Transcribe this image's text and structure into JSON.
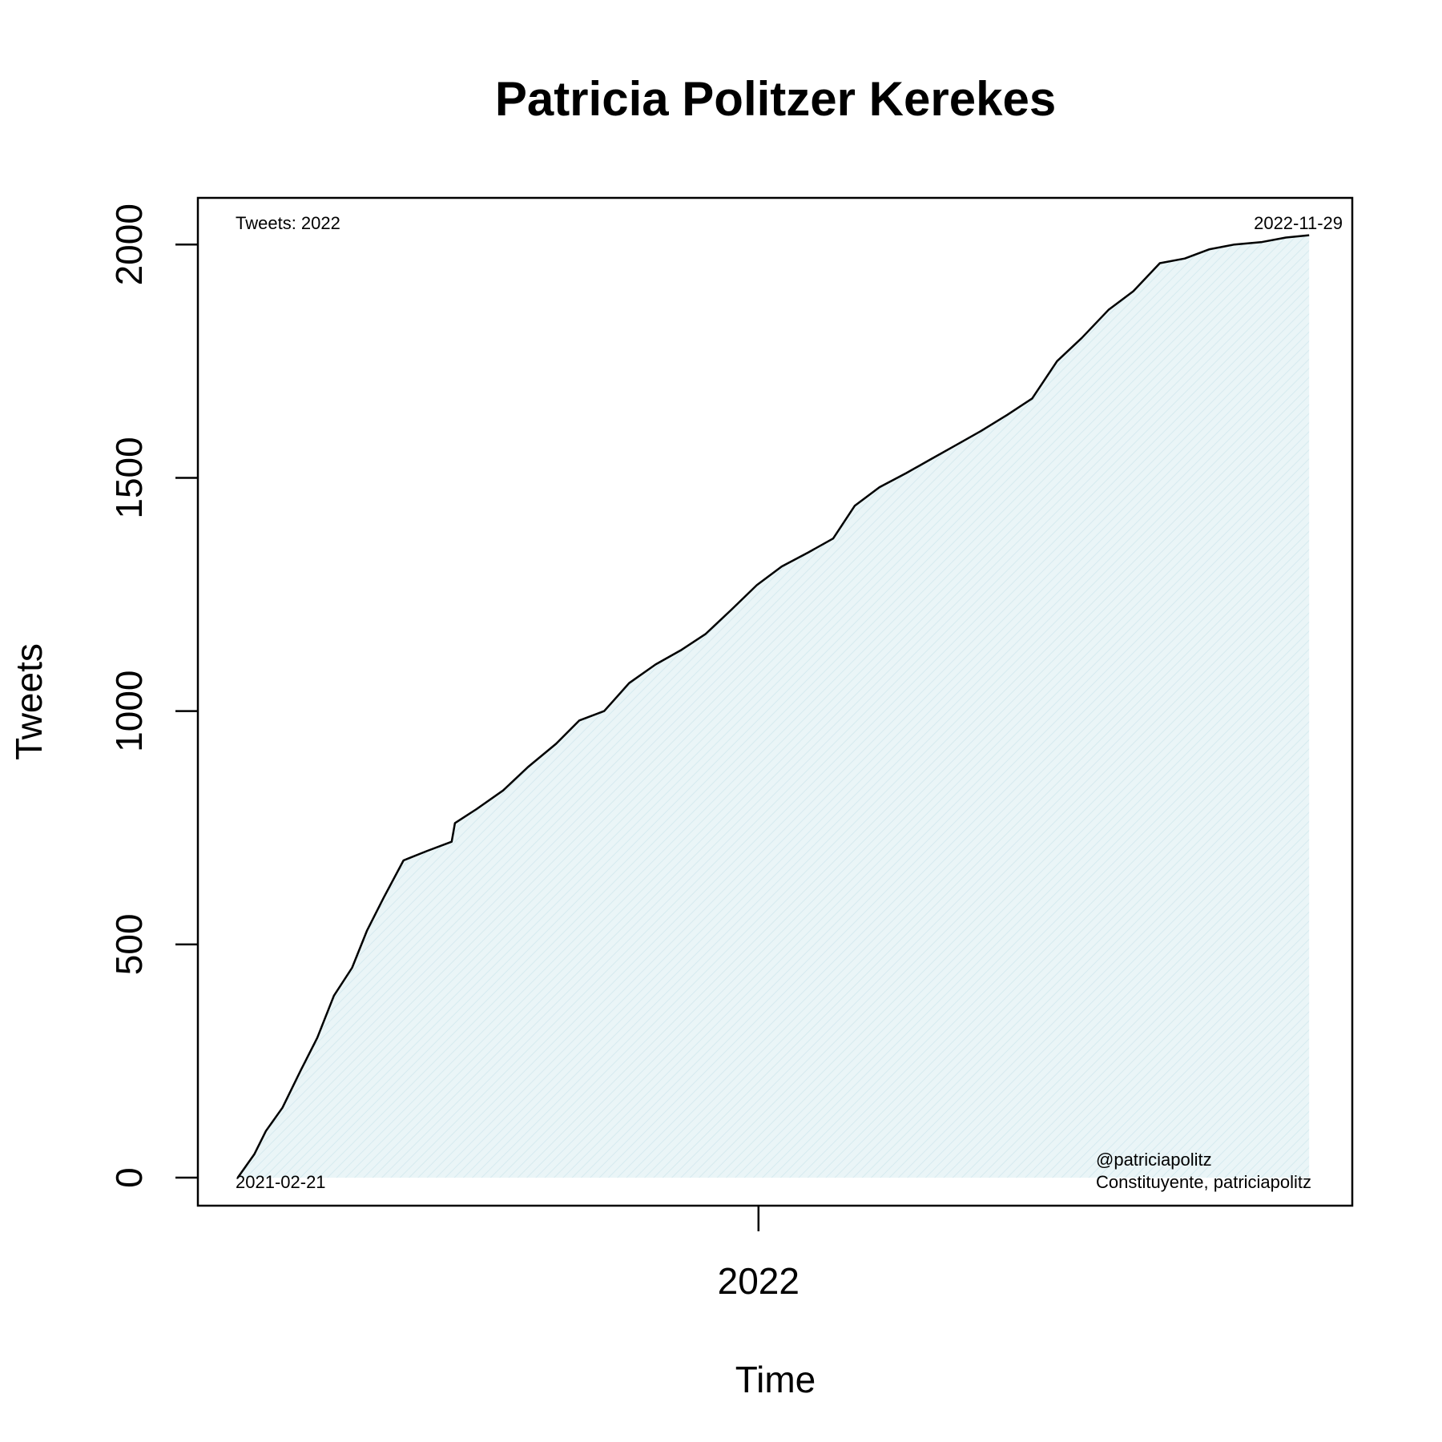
{
  "chart_data": {
    "type": "area",
    "title": "Patricia Politzer Kerekes",
    "xlabel": "Time",
    "ylabel": "Tweets",
    "x_tick_labels": [
      "2022"
    ],
    "y_ticks": [
      0,
      500,
      1000,
      1500,
      2000
    ],
    "ylim": [
      -60,
      2100
    ],
    "xlim": [
      "2021-01-28",
      "2022-12-25"
    ],
    "grid": false,
    "fill_color": "#e0f0f4",
    "line_color": "#000000",
    "annotations": {
      "top_left": "Tweets: 2022",
      "top_right": "2022-11-29",
      "bottom_left": "2021-02-21",
      "bottom_right_line1": "@patriciapolitz",
      "bottom_right_line2": "Constituyente, patriciapolitz"
    },
    "series": [
      {
        "x": [
          "2021-02-21",
          "2021-03-03",
          "2021-03-10",
          "2021-03-20",
          "2021-03-31",
          "2021-04-10",
          "2021-04-20",
          "2021-05-01",
          "2021-05-10",
          "2021-05-20",
          "2021-06-01",
          "2021-06-15",
          "2021-06-30",
          "2021-07-02",
          "2021-07-15",
          "2021-07-31",
          "2021-08-15",
          "2021-09-01",
          "2021-09-15",
          "2021-09-30",
          "2021-10-15",
          "2021-10-31",
          "2021-11-15",
          "2021-11-30",
          "2021-12-15",
          "2021-12-31",
          "2022-01-15",
          "2022-01-31",
          "2022-02-15",
          "2022-02-28",
          "2022-03-15",
          "2022-03-31",
          "2022-04-15",
          "2022-04-30",
          "2022-05-15",
          "2022-05-31",
          "2022-06-15",
          "2022-06-30",
          "2022-07-15",
          "2022-07-31",
          "2022-08-15",
          "2022-08-31",
          "2022-09-15",
          "2022-09-30",
          "2022-10-15",
          "2022-10-31",
          "2022-11-15",
          "2022-11-29"
        ],
        "y": [
          0,
          50,
          100,
          150,
          230,
          300,
          390,
          450,
          530,
          600,
          680,
          700,
          720,
          760,
          790,
          830,
          880,
          930,
          980,
          1000,
          1060,
          1100,
          1130,
          1165,
          1215,
          1270,
          1310,
          1340,
          1370,
          1440,
          1480,
          1510,
          1540,
          1570,
          1600,
          1635,
          1670,
          1750,
          1800,
          1860,
          1900,
          1960,
          1970,
          1990,
          2000,
          2005,
          2015,
          2020
        ]
      }
    ]
  }
}
